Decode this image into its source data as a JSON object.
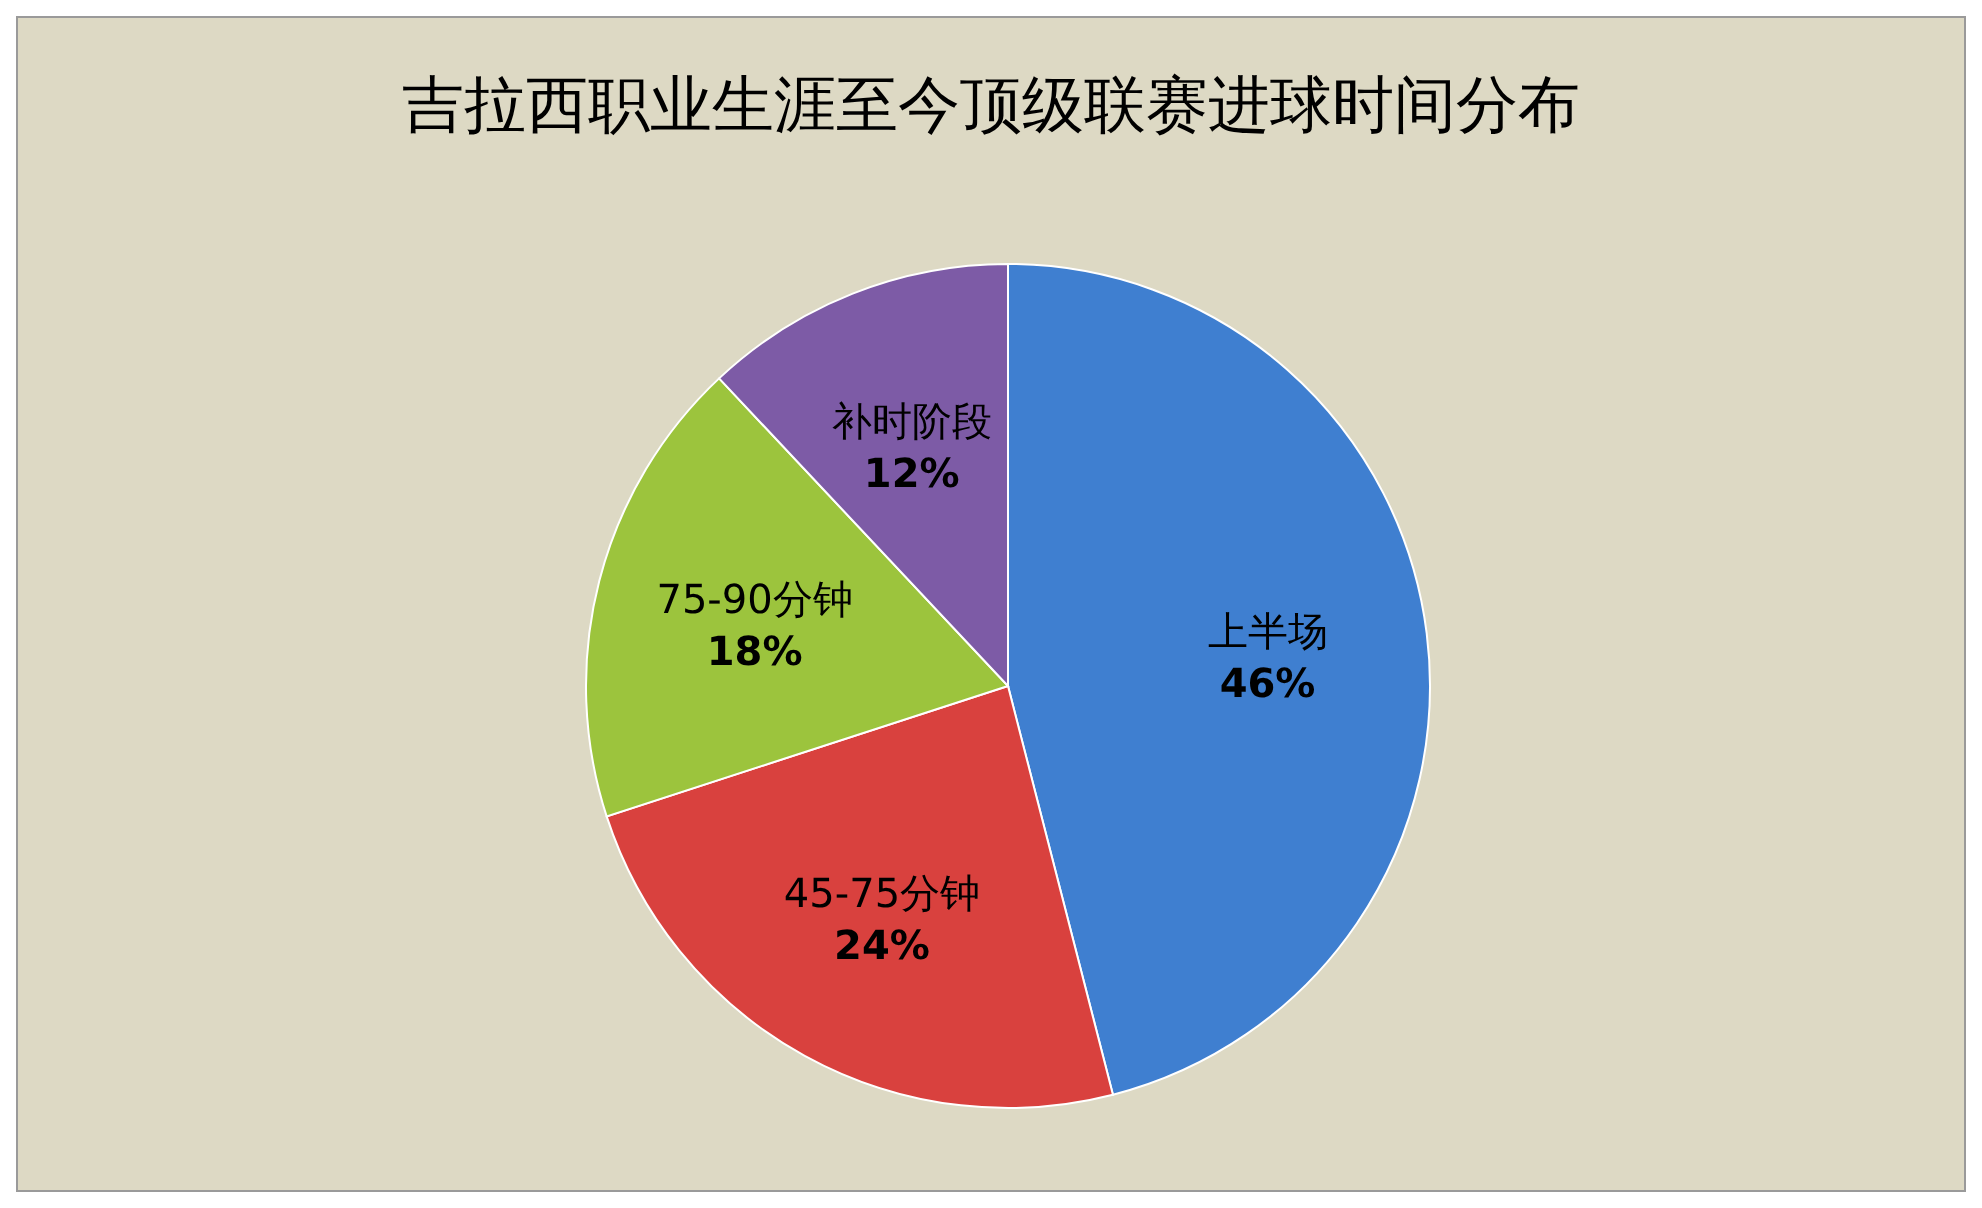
{
  "chart_data": {
    "type": "pie",
    "title": "吉拉西职业生涯至今顶级联赛进球时间分布",
    "categories": [
      "上半场",
      "45-75分钟",
      "75-90分钟",
      "补时阶段"
    ],
    "values": [
      46,
      24,
      18,
      12
    ],
    "colors": [
      "#3f7fd0",
      "#d9413e",
      "#9cc43d",
      "#7d5ba6"
    ],
    "value_labels": [
      "46%",
      "24%",
      "18%",
      "12%"
    ],
    "legend": false
  }
}
